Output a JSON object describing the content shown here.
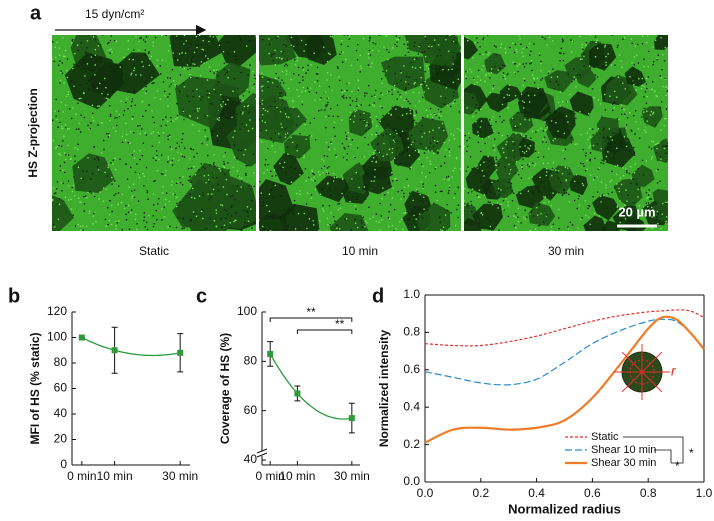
{
  "panel_a": {
    "label": "a",
    "flow": "15 dyn/cm²",
    "y_label": "HS Z-projection",
    "scale_bar": "20 µm",
    "images": [
      "Static",
      "10 min",
      "30 min"
    ]
  },
  "chart_data": [
    {
      "type": "line",
      "label": "b",
      "ylabel": "MFI of HS (% static)",
      "frame": "axes",
      "x": [
        0,
        10,
        30
      ],
      "xlim": [
        -3,
        33
      ],
      "xticks": [
        {
          "value": 0,
          "label": "0 min"
        },
        {
          "value": 10,
          "label": "10 min"
        },
        {
          "value": 30,
          "label": "30 min"
        }
      ],
      "ylim": [
        0,
        120
      ],
      "yticks": [
        0,
        20,
        40,
        60,
        80,
        100,
        120
      ],
      "series": [
        {
          "color": "#2e9a3c",
          "values": [
            100,
            90,
            88
          ],
          "errors": [
            0,
            18,
            15
          ]
        }
      ],
      "fit": true
    },
    {
      "type": "line",
      "label": "c",
      "ylabel": "Coverage of HS (%)",
      "frame": "axes",
      "axis_break": true,
      "x": [
        0,
        10,
        30
      ],
      "xlim": [
        -3,
        33
      ],
      "xticks": [
        {
          "value": 0,
          "label": "0 min"
        },
        {
          "value": 10,
          "label": "10 min"
        },
        {
          "value": 30,
          "label": "30 min"
        }
      ],
      "ylim": [
        38,
        100
      ],
      "yticks": [
        40,
        60,
        80,
        100
      ],
      "series": [
        {
          "color": "#2e9a3c",
          "values": [
            83,
            67,
            57
          ],
          "errors": [
            5,
            3,
            6
          ]
        }
      ],
      "fit": true,
      "annotations": [
        {
          "text": "**",
          "x": [
            0,
            30
          ]
        },
        {
          "text": "**",
          "x": [
            10,
            30
          ]
        }
      ]
    },
    {
      "type": "line",
      "label": "d",
      "xlabel": "Normalized radius",
      "ylabel": "Normalized intensity",
      "frame": "box",
      "legend": "lower right",
      "x": [
        0,
        0.1,
        0.2,
        0.3,
        0.4,
        0.5,
        0.6,
        0.7,
        0.8,
        0.85,
        0.9,
        0.95,
        1.0
      ],
      "xlim": [
        0,
        1
      ],
      "xticks": [
        {
          "value": 0,
          "label": "0.0"
        },
        {
          "value": 0.2,
          "label": "0.2"
        },
        {
          "value": 0.4,
          "label": "0.4"
        },
        {
          "value": 0.6,
          "label": "0.6"
        },
        {
          "value": 0.8,
          "label": "0.8"
        },
        {
          "value": 1,
          "label": "1.0"
        }
      ],
      "ylim": [
        0,
        1
      ],
      "yticks": [
        {
          "value": 0,
          "label": "0.0"
        },
        {
          "value": 0.2,
          "label": "0.2"
        },
        {
          "value": 0.4,
          "label": "0.4"
        },
        {
          "value": 0.6,
          "label": "0.6"
        },
        {
          "value": 0.8,
          "label": "0.8"
        },
        {
          "value": 1,
          "label": "1.0"
        }
      ],
      "series": [
        {
          "name": "Static",
          "color": "#e0302a",
          "dash": "3,2",
          "width": 1.2,
          "values": [
            0.74,
            0.73,
            0.73,
            0.75,
            0.78,
            0.82,
            0.86,
            0.89,
            0.91,
            0.915,
            0.92,
            0.915,
            0.88
          ]
        },
        {
          "name": "Shear 10 min",
          "color": "#2a8ad0",
          "dash": "7,3",
          "width": 1.2,
          "values": [
            0.59,
            0.56,
            0.53,
            0.52,
            0.55,
            0.64,
            0.74,
            0.81,
            0.86,
            0.87,
            0.86,
            0.8,
            0.71
          ]
        },
        {
          "name": "Shear 30 min",
          "color": "#f07c28",
          "width": 2.2,
          "values": [
            0.21,
            0.28,
            0.29,
            0.28,
            0.29,
            0.33,
            0.45,
            0.63,
            0.82,
            0.88,
            0.87,
            0.8,
            0.71
          ]
        }
      ],
      "inset_label": "r",
      "annotations": [
        {
          "text": "*"
        },
        {
          "text": "*"
        }
      ]
    }
  ]
}
